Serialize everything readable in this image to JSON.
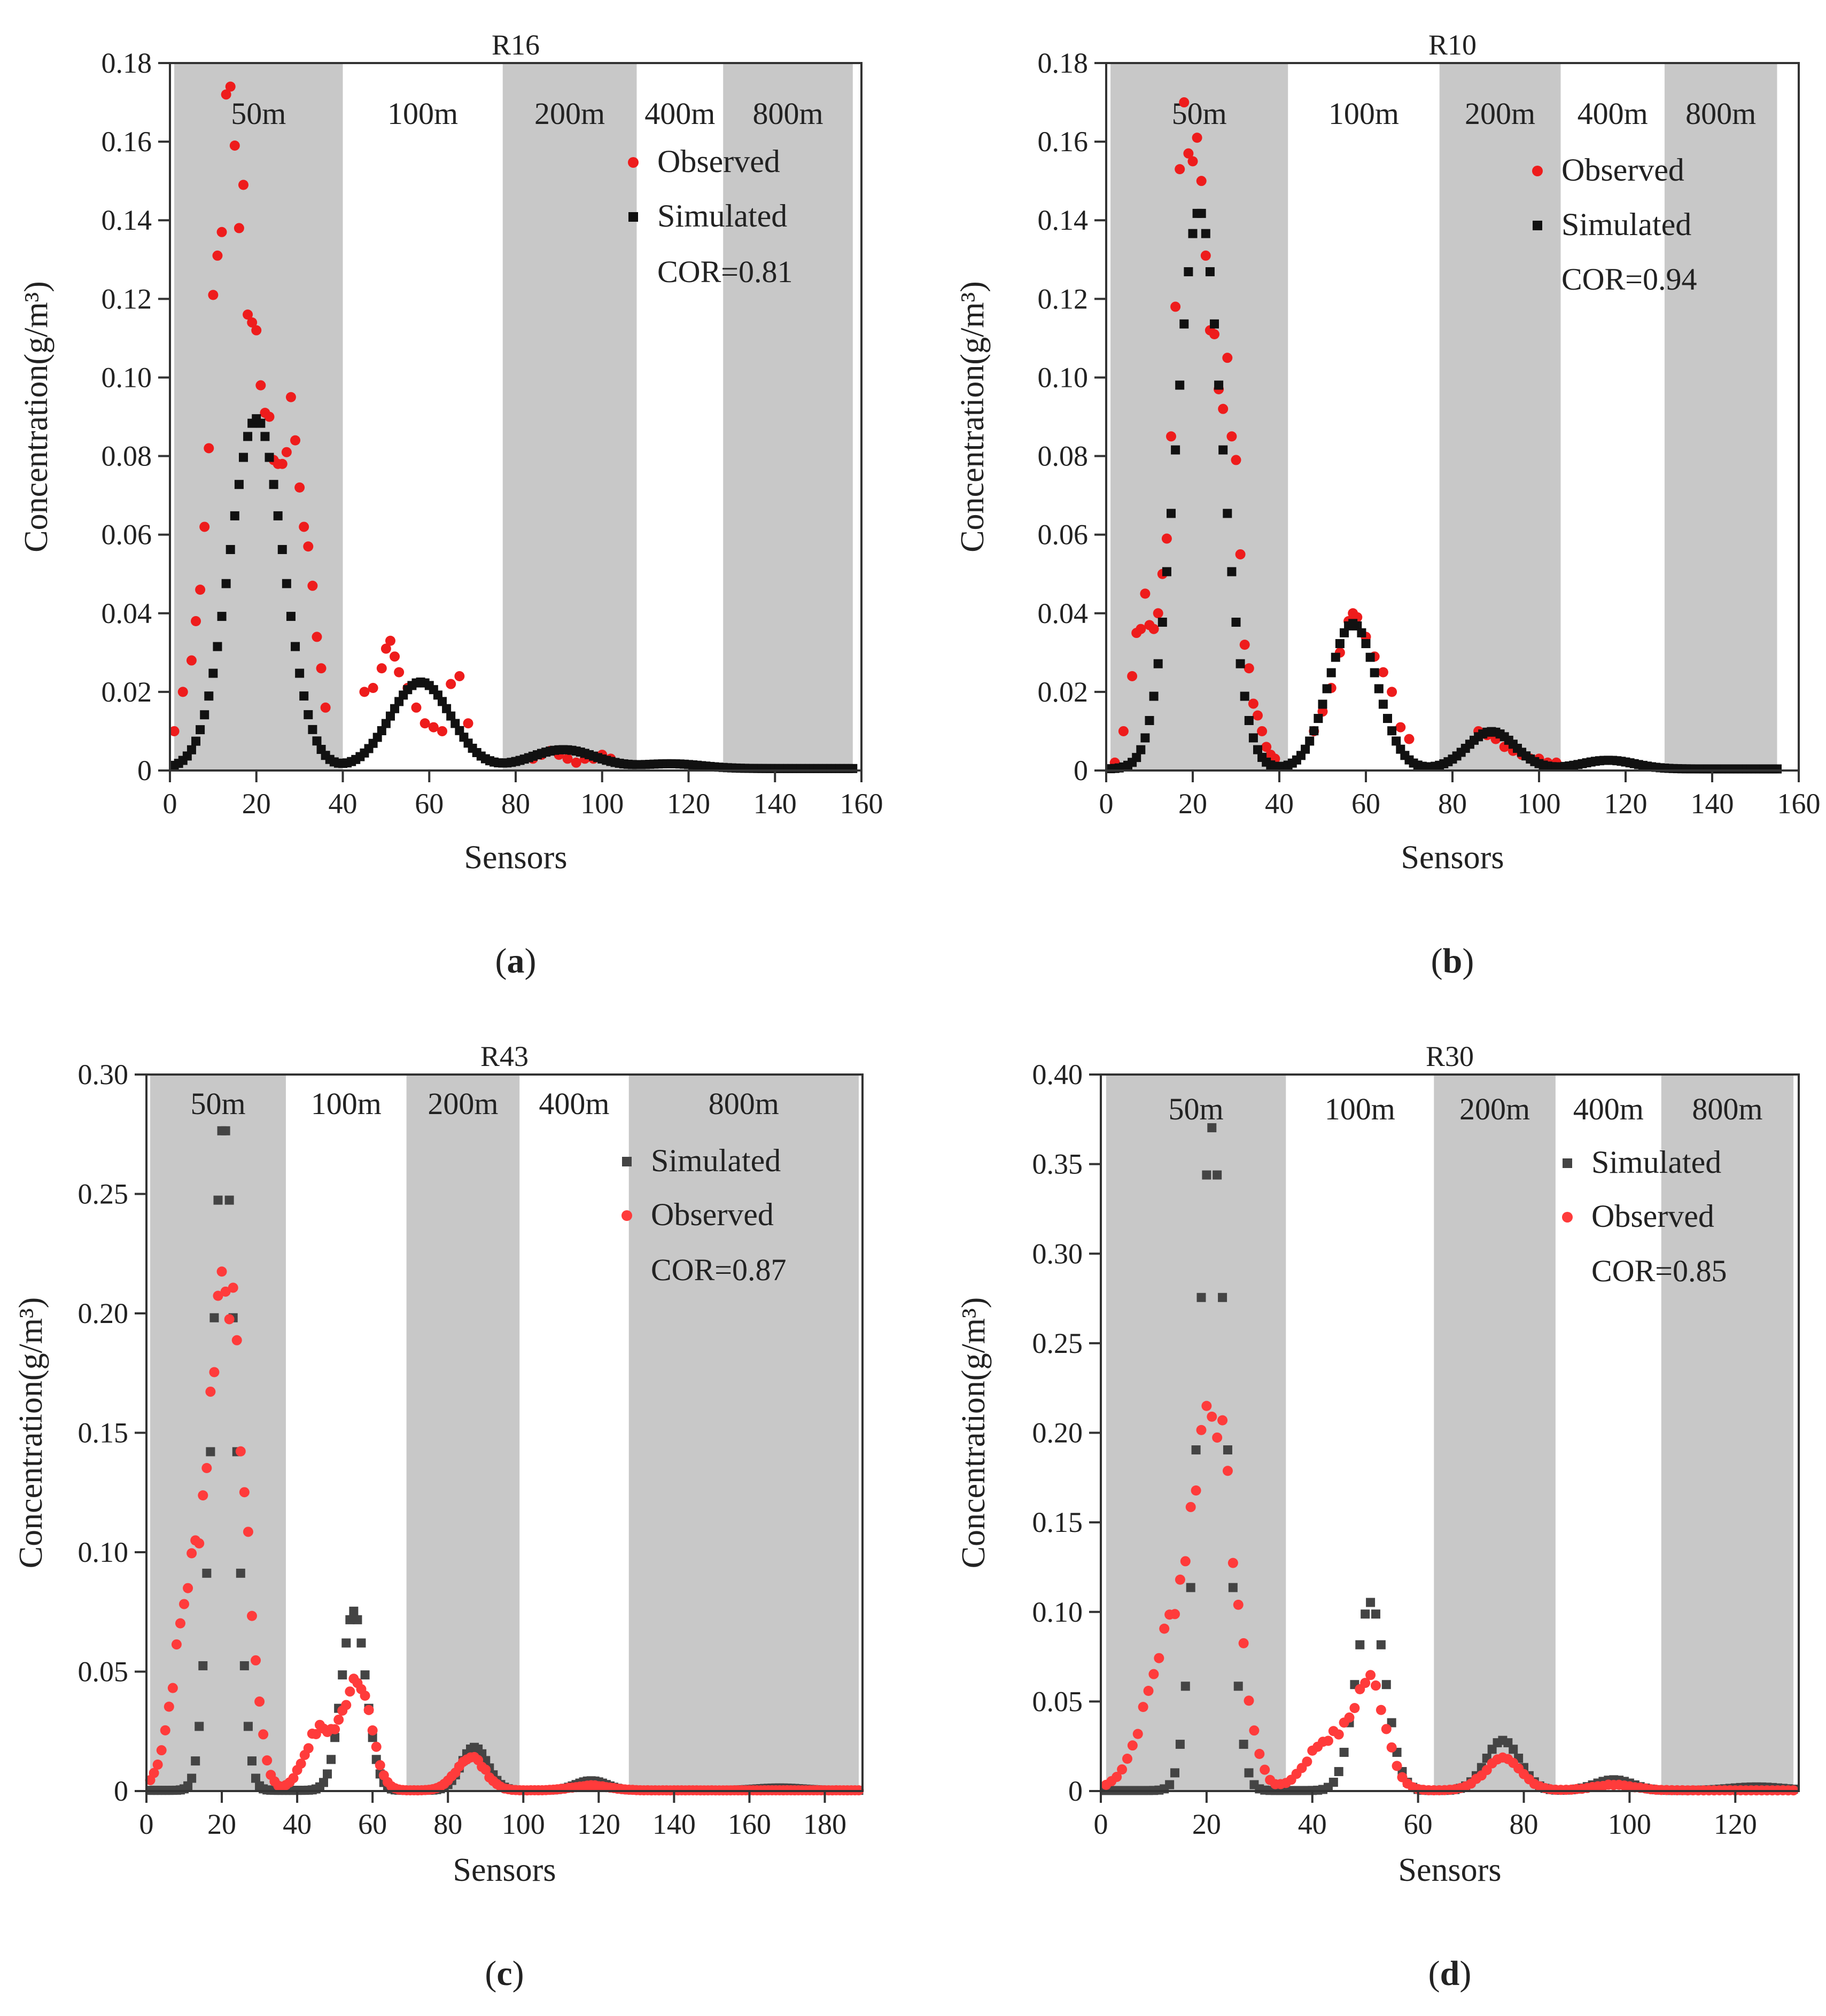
{
  "chart_data": [
    {
      "type": "scatter",
      "panel_label": "a",
      "title": "R16",
      "xlabel": "Sensors",
      "ylabel": "Concentration(g/m³)",
      "xlim": [
        0,
        160
      ],
      "ylim": [
        0,
        0.18
      ],
      "xticks": [
        0,
        20,
        40,
        60,
        80,
        100,
        120,
        140,
        160
      ],
      "yticks": [
        0,
        0.02,
        0.04,
        0.06,
        0.08,
        0.1,
        0.12,
        0.14,
        0.16,
        0.18
      ],
      "ytick_labels": [
        "0",
        "0.02",
        "0.04",
        "0.06",
        "0.08",
        "0.10",
        "0.12",
        "0.14",
        "0.16",
        "0.18"
      ],
      "zones": [
        {
          "label": "50m",
          "from": 1,
          "to": 40,
          "shaded": true
        },
        {
          "label": "100m",
          "from": 40,
          "to": 77,
          "shaded": false
        },
        {
          "label": "200m",
          "from": 77,
          "to": 108,
          "shaded": true
        },
        {
          "label": "400m",
          "from": 108,
          "to": 128,
          "shaded": false
        },
        {
          "label": "800m",
          "from": 128,
          "to": 158,
          "shaded": true
        }
      ],
      "legend": [
        "Observed",
        "Simulated"
      ],
      "cor": "COR=0.81",
      "series": [
        {
          "name": "Observed",
          "marker": "circle",
          "color": "#ee1c1c",
          "x": [
            1,
            3,
            5,
            6,
            7,
            8,
            9,
            10,
            11,
            12,
            13,
            14,
            15,
            16,
            17,
            18,
            19,
            20,
            21,
            22,
            23,
            24,
            25,
            26,
            27,
            28,
            29,
            30,
            31,
            32,
            33,
            34,
            35,
            36,
            45,
            47,
            49,
            50,
            51,
            52,
            53,
            55,
            57,
            59,
            61,
            63,
            65,
            67,
            69,
            84,
            86,
            88,
            90,
            92,
            94,
            96,
            98,
            100,
            102
          ],
          "y": [
            0.01,
            0.02,
            0.028,
            0.038,
            0.046,
            0.062,
            0.082,
            0.121,
            0.131,
            0.137,
            0.172,
            0.174,
            0.159,
            0.138,
            0.149,
            0.116,
            0.114,
            0.112,
            0.098,
            0.091,
            0.09,
            0.079,
            0.078,
            0.078,
            0.081,
            0.095,
            0.084,
            0.072,
            0.062,
            0.057,
            0.047,
            0.034,
            0.026,
            0.016,
            0.02,
            0.021,
            0.026,
            0.031,
            0.033,
            0.029,
            0.025,
            0.021,
            0.016,
            0.012,
            0.011,
            0.01,
            0.022,
            0.024,
            0.012,
            0.003,
            0.004,
            0.005,
            0.004,
            0.003,
            0.002,
            0.003,
            0.003,
            0.004,
            0.003
          ]
        },
        {
          "name": "Simulated",
          "marker": "square",
          "color": "#111111",
          "generator": {
            "baseline": 0.0005,
            "peaks": [
              [
                20,
                0.089,
                6.2
              ],
              [
                58,
                0.022,
                7.0
              ],
              [
                91,
                0.0048,
                7.5
              ],
              [
                116,
                0.0012,
                7
              ]
            ],
            "x_from": 1,
            "x_to": 158
          }
        }
      ]
    },
    {
      "type": "scatter",
      "panel_label": "b",
      "title": "R10",
      "xlabel": "Sensors",
      "ylabel": "Concentration(g/m³)",
      "xlim": [
        0,
        160
      ],
      "ylim": [
        0,
        0.18
      ],
      "xticks": [
        0,
        20,
        40,
        60,
        80,
        100,
        120,
        140,
        160
      ],
      "yticks": [
        0,
        0.02,
        0.04,
        0.06,
        0.08,
        0.1,
        0.12,
        0.14,
        0.16,
        0.18
      ],
      "ytick_labels": [
        "0",
        "0.02",
        "0.04",
        "0.06",
        "0.08",
        "0.10",
        "0.12",
        "0.14",
        "0.16",
        "0.18"
      ],
      "zones": [
        {
          "label": "50m",
          "from": 1,
          "to": 42,
          "shaded": true
        },
        {
          "label": "100m",
          "from": 42,
          "to": 77,
          "shaded": false
        },
        {
          "label": "200m",
          "from": 77,
          "to": 105,
          "shaded": true
        },
        {
          "label": "400m",
          "from": 105,
          "to": 129,
          "shaded": false
        },
        {
          "label": "800m",
          "from": 129,
          "to": 155,
          "shaded": true
        }
      ],
      "legend": [
        "Observed",
        "Simulated"
      ],
      "cor": "COR=0.94",
      "series": [
        {
          "name": "Observed",
          "marker": "circle",
          "color": "#ee1c1c",
          "x": [
            2,
            4,
            6,
            7,
            8,
            9,
            10,
            11,
            12,
            13,
            14,
            15,
            16,
            17,
            18,
            19,
            20,
            21,
            22,
            23,
            24,
            25,
            26,
            27,
            28,
            29,
            30,
            31,
            32,
            33,
            34,
            35,
            36,
            37,
            38,
            39,
            48,
            50,
            52,
            54,
            56,
            57,
            58,
            60,
            62,
            64,
            66,
            68,
            70,
            86,
            88,
            90,
            92,
            94,
            96,
            98,
            100,
            102,
            104
          ],
          "y": [
            0.002,
            0.01,
            0.024,
            0.035,
            0.036,
            0.045,
            0.037,
            0.036,
            0.04,
            0.05,
            0.059,
            0.085,
            0.118,
            0.153,
            0.17,
            0.157,
            0.155,
            0.161,
            0.15,
            0.131,
            0.112,
            0.111,
            0.097,
            0.092,
            0.105,
            0.085,
            0.079,
            0.055,
            0.032,
            0.026,
            0.017,
            0.014,
            0.01,
            0.006,
            0.004,
            0.003,
            0.01,
            0.015,
            0.021,
            0.03,
            0.038,
            0.04,
            0.039,
            0.034,
            0.029,
            0.025,
            0.02,
            0.011,
            0.008,
            0.01,
            0.009,
            0.008,
            0.006,
            0.005,
            0.004,
            0.003,
            0.003,
            0.002,
            0.002
          ]
        },
        {
          "name": "Simulated",
          "marker": "square",
          "color": "#111111",
          "generator": {
            "baseline": 0.0004,
            "peaks": [
              [
                21.5,
                0.142,
                5.2
              ],
              [
                57,
                0.037,
                5.5
              ],
              [
                89,
                0.0095,
                5.5
              ],
              [
                116,
                0.0022,
                6
              ]
            ],
            "x_from": 1,
            "x_to": 155
          }
        }
      ]
    },
    {
      "type": "scatter",
      "panel_label": "c",
      "title": "R43",
      "xlabel": "Sensors",
      "ylabel": "Concentration(g/m³)",
      "xlim": [
        0,
        190
      ],
      "ylim": [
        0,
        0.3
      ],
      "xticks": [
        0,
        20,
        40,
        60,
        80,
        100,
        120,
        140,
        160,
        180
      ],
      "yticks": [
        0,
        0.05,
        0.1,
        0.15,
        0.2,
        0.25,
        0.3
      ],
      "ytick_labels": [
        "0",
        "0.05",
        "0.10",
        "0.15",
        "0.20",
        "0.25",
        "0.30"
      ],
      "zones": [
        {
          "label": "50m",
          "from": 1,
          "to": 37,
          "shaded": true
        },
        {
          "label": "100m",
          "from": 37,
          "to": 69,
          "shaded": false
        },
        {
          "label": "200m",
          "from": 69,
          "to": 99,
          "shaded": true
        },
        {
          "label": "400m",
          "from": 99,
          "to": 128,
          "shaded": false
        },
        {
          "label": "800m",
          "from": 128,
          "to": 189,
          "shaded": true
        }
      ],
      "legend": [
        "Simulated",
        "Observed"
      ],
      "cor": "COR=0.87",
      "series": [
        {
          "name": "Simulated",
          "marker": "square",
          "color": "#444444",
          "generator": {
            "baseline": 0.0003,
            "peaks": [
              [
                20.5,
                0.28,
                3.0
              ],
              [
                55,
                0.075,
                3.2
              ],
              [
                87,
                0.018,
                3.5
              ],
              [
                118,
                0.004,
                4
              ],
              [
                168,
                0.001,
                6
              ]
            ],
            "x_from": 1,
            "x_to": 189
          }
        },
        {
          "name": "Observed",
          "marker": "circle",
          "color": "#ff3b3b",
          "generator": {
            "baseline": 0.0003,
            "peaks": [
              [
                12,
                0.085,
                4.5
              ],
              [
                20.5,
                0.19,
                3.5
              ],
              [
                26,
                0.07,
                3.2
              ],
              [
                46,
                0.025,
                4
              ],
              [
                56,
                0.047,
                3.5
              ],
              [
                86,
                0.014,
                3.8
              ],
              [
                118,
                0.002,
                5
              ]
            ],
            "x_from": 1,
            "x_to": 189,
            "jitter": 0.08
          }
        }
      ]
    },
    {
      "type": "scatter",
      "panel_label": "d",
      "title": "R30",
      "xlabel": "Sensors",
      "ylabel": "Concentration(g/m³)",
      "xlim": [
        0,
        132
      ],
      "ylim": [
        0,
        0.4
      ],
      "xticks": [
        0,
        20,
        40,
        60,
        80,
        100,
        120
      ],
      "yticks": [
        0,
        0.05,
        0.1,
        0.15,
        0.2,
        0.25,
        0.3,
        0.35,
        0.4
      ],
      "ytick_labels": [
        "0",
        "0.05",
        "0.10",
        "0.15",
        "0.20",
        "0.25",
        "0.30",
        "0.35",
        "0.40"
      ],
      "zones": [
        {
          "label": "50m",
          "from": 1,
          "to": 35,
          "shaded": true
        },
        {
          "label": "100m",
          "from": 35,
          "to": 63,
          "shaded": false
        },
        {
          "label": "200m",
          "from": 63,
          "to": 86,
          "shaded": true
        },
        {
          "label": "400m",
          "from": 86,
          "to": 106,
          "shaded": false
        },
        {
          "label": "800m",
          "from": 106,
          "to": 131,
          "shaded": true
        }
      ],
      "legend": [
        "Simulated",
        "Observed"
      ],
      "cor": "COR=0.85",
      "series": [
        {
          "name": "Simulated",
          "marker": "square",
          "color": "#444444",
          "generator": {
            "baseline": 0.0003,
            "peaks": [
              [
                21,
                0.37,
                2.6
              ],
              [
                51,
                0.105,
                2.8
              ],
              [
                76,
                0.028,
                3.2
              ],
              [
                97,
                0.006,
                3.5
              ],
              [
                124,
                0.002,
                5
              ]
            ],
            "x_from": 1,
            "x_to": 131
          }
        },
        {
          "name": "Observed",
          "marker": "circle",
          "color": "#ff3b3b",
          "generator": {
            "baseline": 0.0004,
            "peaks": [
              [
                14,
                0.09,
                5
              ],
              [
                21,
                0.17,
                3.2
              ],
              [
                25.5,
                0.05,
                3
              ],
              [
                43,
                0.028,
                4
              ],
              [
                51,
                0.058,
                3
              ],
              [
                76,
                0.017,
                3.5
              ],
              [
                97,
                0.003,
                4
              ]
            ],
            "x_from": 1,
            "x_to": 131,
            "jitter": 0.08
          }
        }
      ]
    }
  ]
}
